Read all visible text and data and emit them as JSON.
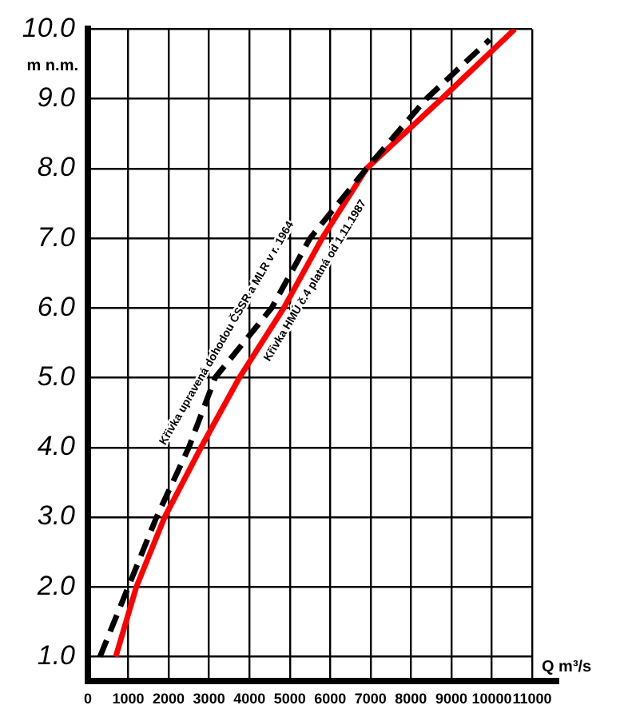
{
  "chart_data": {
    "type": "line",
    "xlabel": "Q m³/s",
    "ylabel": "m n.m.",
    "series": [
      {
        "name": "Křivka upravená dohodou ČSSR a MLR v r. 1964",
        "color": "#000000",
        "line_style": "dashed",
        "x": [
          300,
          1000,
          1700,
          2500,
          3150,
          4550,
          5500,
          6900,
          8380,
          9950
        ],
        "values": [
          1.0,
          2.0,
          3.0,
          4.0,
          5.0,
          6.0,
          7.0,
          8.0,
          9.0,
          9.85
        ]
      },
      {
        "name": "Křivka HMÚ č.4 platná od 1.11.1987",
        "color": "#ff0000",
        "line_style": "solid",
        "x": [
          690,
          1200,
          1900,
          2800,
          3750,
          4850,
          5800,
          6900,
          8760,
          10570
        ],
        "values": [
          1.0,
          2.0,
          3.0,
          4.0,
          5.0,
          6.0,
          7.0,
          8.0,
          9.0,
          10.0
        ]
      }
    ],
    "xlim": [
      0,
      11000
    ],
    "xticks": [
      0,
      1000,
      2000,
      3000,
      4000,
      5000,
      6000,
      7000,
      8000,
      9000,
      10000,
      11000
    ],
    "ylim": [
      0.65,
      10
    ],
    "yticks": [
      {
        "value": 1,
        "label": "1.0"
      },
      {
        "value": 2,
        "label": "2.0"
      },
      {
        "value": 3,
        "label": "3.0"
      },
      {
        "value": 4,
        "label": "4.0"
      },
      {
        "value": 5,
        "label": "5.0"
      },
      {
        "value": 6,
        "label": "6.0"
      },
      {
        "value": 7,
        "label": "7.0"
      },
      {
        "value": 8,
        "label": "8.0"
      },
      {
        "value": 9,
        "label": "9.0"
      },
      {
        "value": 10,
        "label": "10.0"
      }
    ],
    "grid": true,
    "legend": false,
    "marker": "none"
  }
}
